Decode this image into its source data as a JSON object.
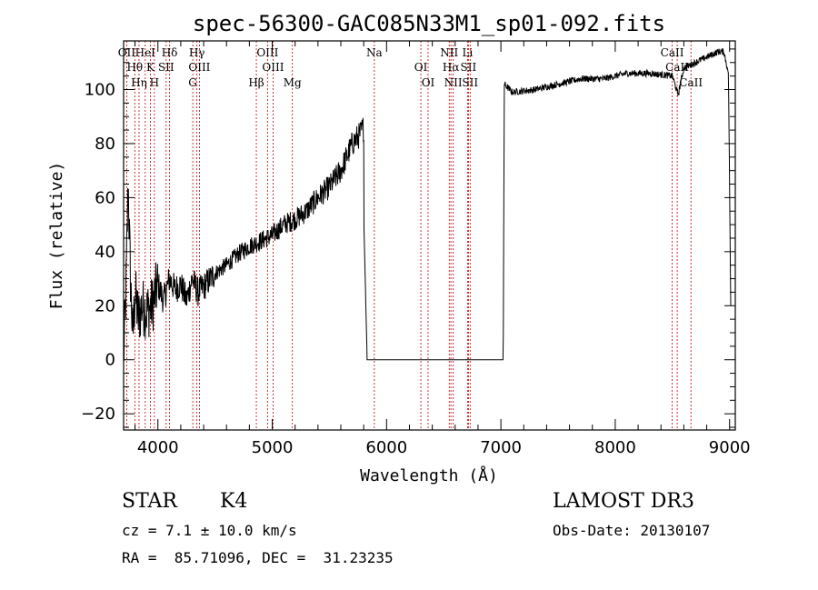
{
  "chart_data": {
    "type": "line",
    "title": "spec-56300-GAC085N33M1_sp01-092.fits",
    "xlabel": "Wavelength (Å)",
    "ylabel": "Flux (relative)",
    "xlim": [
      3700,
      9050
    ],
    "ylim": [
      -26,
      118
    ],
    "xticks": [
      4000,
      5000,
      6000,
      7000,
      8000,
      9000
    ],
    "yticks": [
      -20,
      0,
      20,
      40,
      60,
      80,
      100
    ],
    "series": [
      {
        "name": "spectrum",
        "x": [
          3700,
          3720,
          3740,
          3760,
          3780,
          3800,
          3830,
          3860,
          3900,
          3950,
          4000,
          4050,
          4100,
          4150,
          4200,
          4250,
          4300,
          4350,
          4400,
          4500,
          4600,
          4700,
          4800,
          4900,
          5000,
          5100,
          5200,
          5300,
          5400,
          5500,
          5600,
          5700,
          5760,
          5800,
          5802,
          5830,
          6500,
          7000,
          7020,
          7030,
          7100,
          7300,
          7500,
          7700,
          7900,
          8100,
          8300,
          8500,
          8550,
          8600,
          8700,
          8800,
          8900,
          8950,
          8990,
          9000,
          9010
        ],
        "y": [
          0,
          25,
          65,
          30,
          8,
          25,
          15,
          20,
          18,
          20,
          28,
          22,
          30,
          26,
          28,
          22,
          30,
          25,
          27,
          32,
          35,
          39,
          42,
          44,
          46,
          50,
          52,
          55,
          60,
          64,
          70,
          80,
          83,
          86,
          50,
          0,
          0,
          0,
          0,
          102,
          99,
          100,
          102,
          104,
          104,
          106,
          106,
          105,
          98,
          108,
          110,
          112,
          114,
          114,
          106,
          65,
          20
        ]
      }
    ],
    "emission_lines": [
      {
        "name": "OII",
        "wave": 3727
      },
      {
        "name": "Hθ",
        "wave": 3798
      },
      {
        "name": "Hη",
        "wave": 3835
      },
      {
        "name": "HeI",
        "wave": 3889
      },
      {
        "name": "K",
        "wave": 3934
      },
      {
        "name": "H",
        "wave": 3969
      },
      {
        "name": "Hδ",
        "wave": 4102
      },
      {
        "name": "SII",
        "wave": 4072
      },
      {
        "name": "G",
        "wave": 4305
      },
      {
        "name": "Hγ",
        "wave": 4341
      },
      {
        "name": "OIII",
        "wave": 4363
      },
      {
        "name": "Hβ",
        "wave": 4861
      },
      {
        "name": "OIII",
        "wave": 4959
      },
      {
        "name": "OIII",
        "wave": 5007
      },
      {
        "name": "Mg",
        "wave": 5176
      },
      {
        "name": "Na",
        "wave": 5893
      },
      {
        "name": "OI",
        "wave": 6300
      },
      {
        "name": "OI",
        "wave": 6363
      },
      {
        "name": "NII",
        "wave": 6548
      },
      {
        "name": "Hα",
        "wave": 6563
      },
      {
        "name": "NII",
        "wave": 6583
      },
      {
        "name": "Li",
        "wave": 6708
      },
      {
        "name": "SII",
        "wave": 6716
      },
      {
        "name": "SII",
        "wave": 6731
      },
      {
        "name": "CaII",
        "wave": 8498
      },
      {
        "name": "CaII",
        "wave": 8542
      },
      {
        "name": "CaII",
        "wave": 8662
      }
    ],
    "line_color": "#000000",
    "marker_color": "#c00000"
  },
  "info": {
    "obj_class": "STAR",
    "subclass": "K4",
    "cz": "cz = 7.1 ± 10.0 km/s",
    "coords": "RA =  85.71096, DEC =  31.23235",
    "survey": "LAMOST DR3",
    "obs_date": "Obs-Date: 20130107"
  }
}
